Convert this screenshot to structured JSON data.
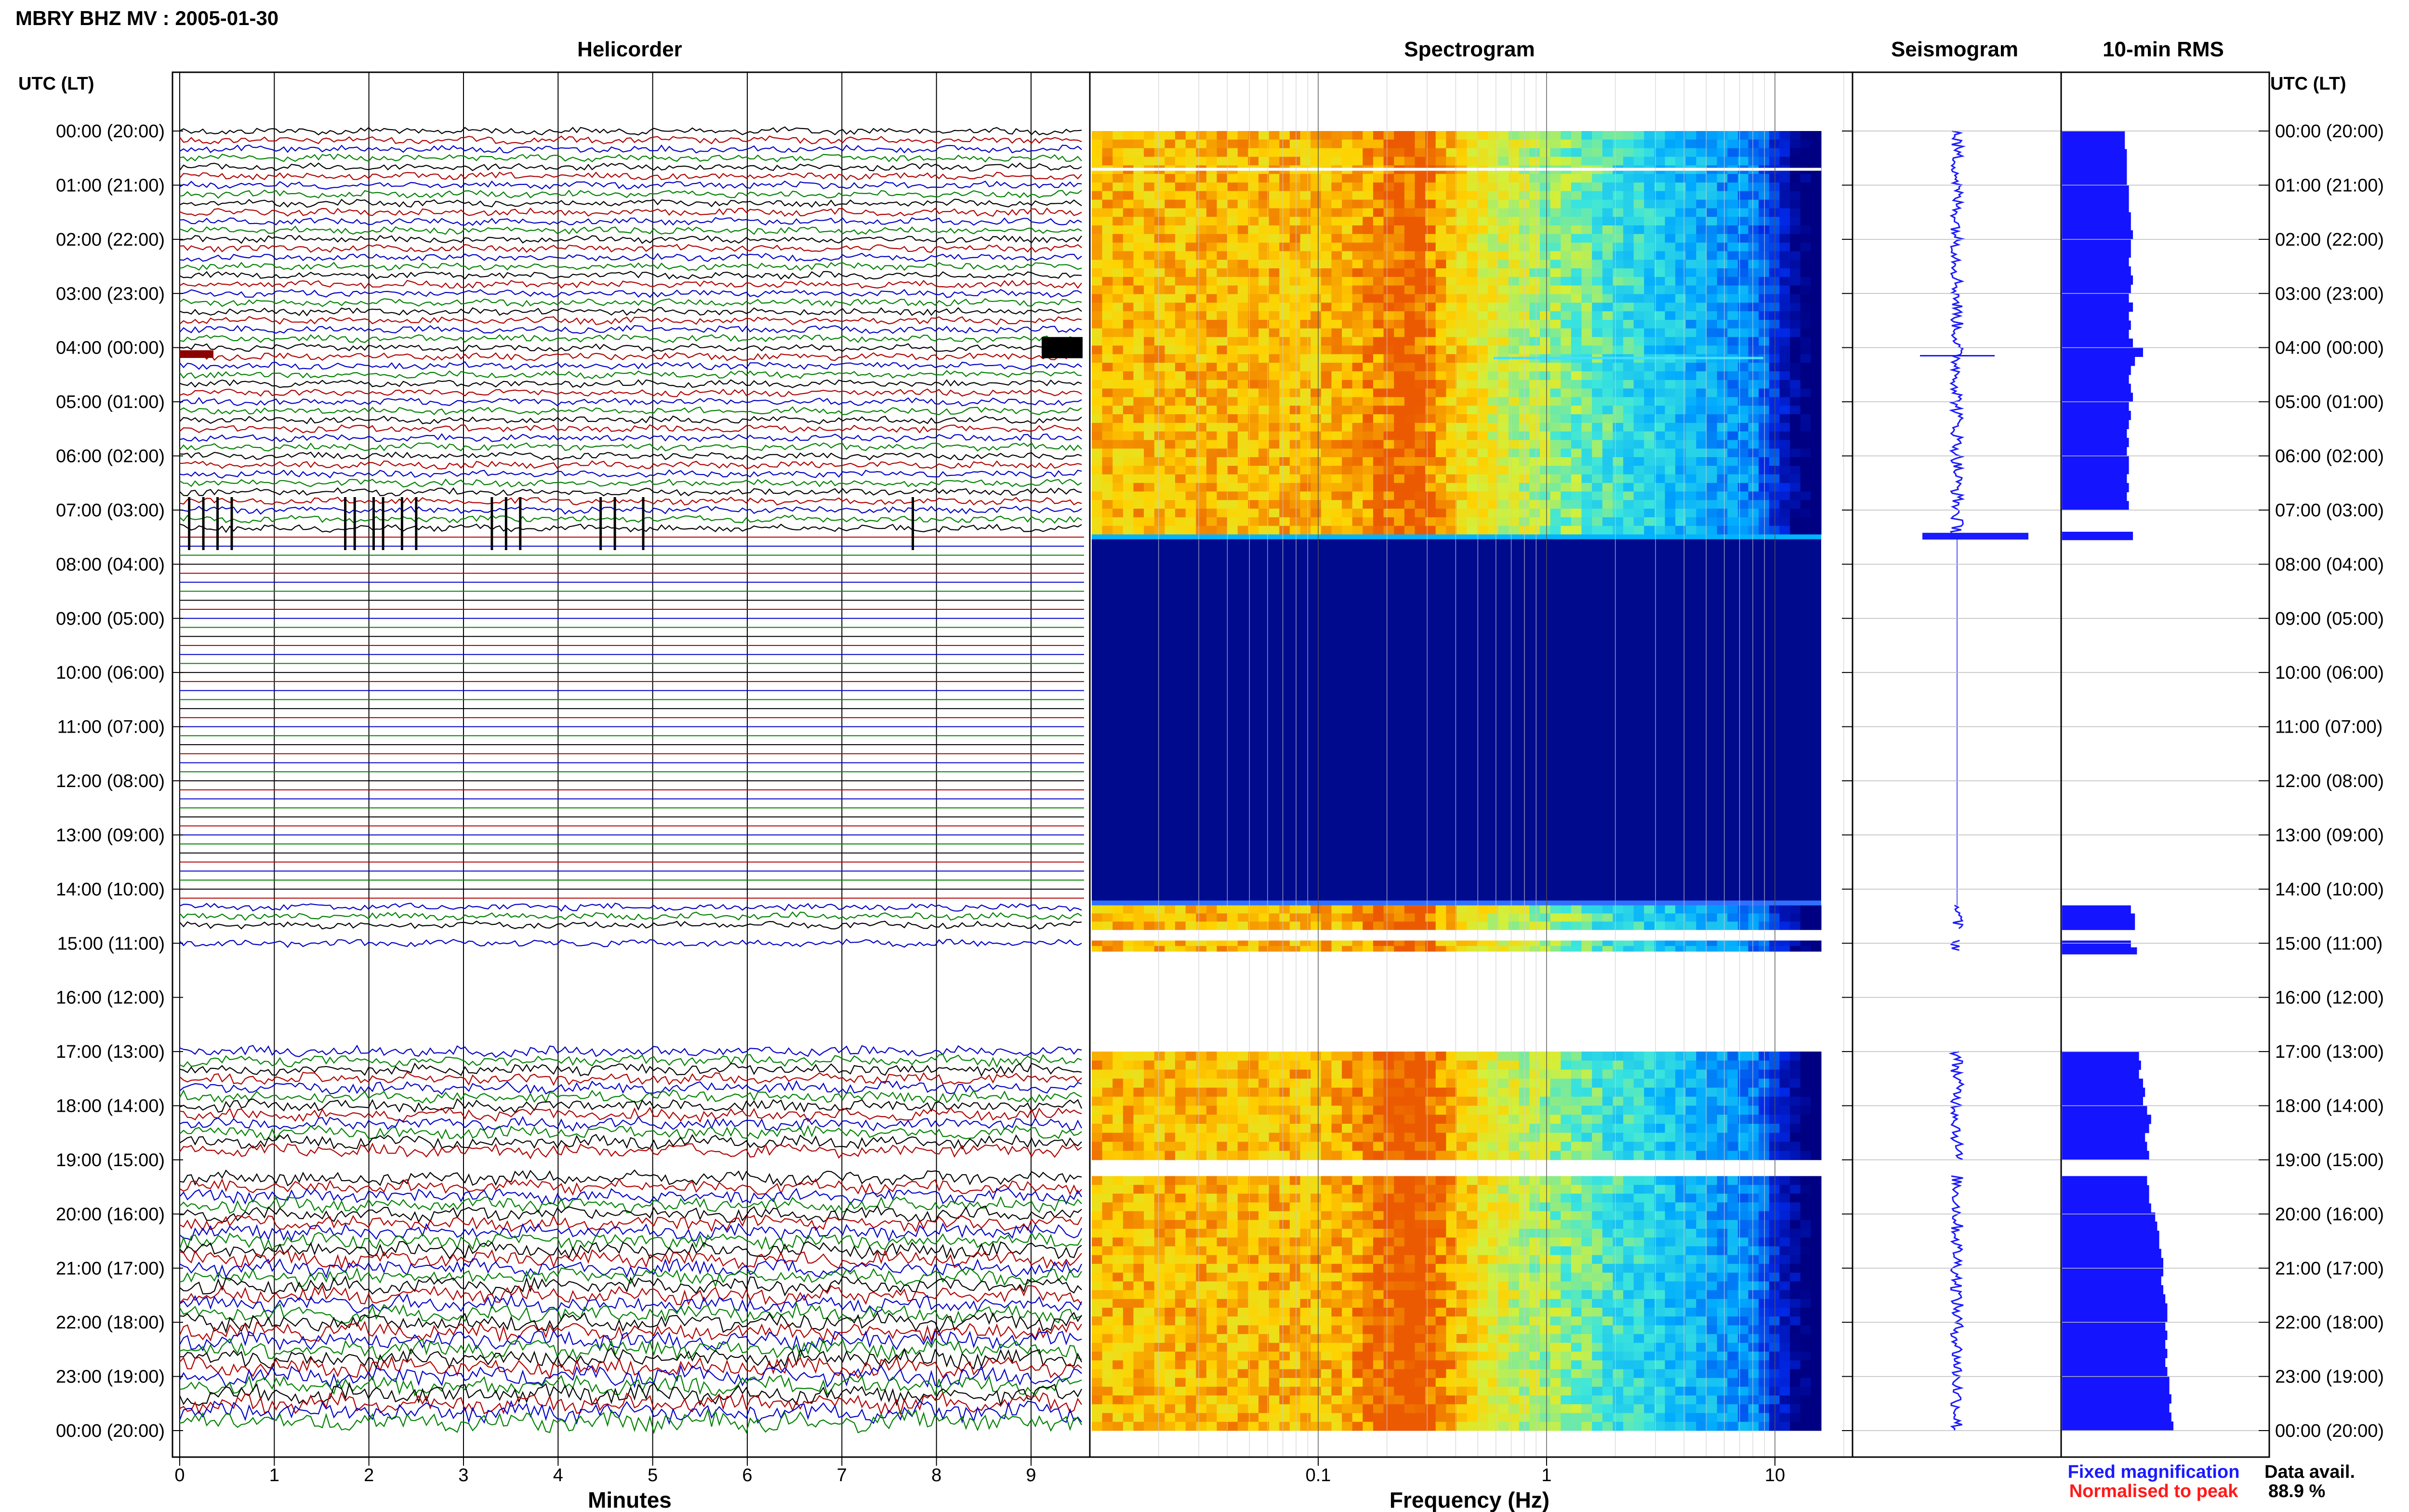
{
  "header": {
    "title": "MBRY BHZ MV : 2005-01-30"
  },
  "panels": {
    "helicorder": {
      "title": "Helicorder",
      "xlabel": "Minutes"
    },
    "spectrogram": {
      "title": "Spectrogram",
      "xlabel": "Frequency (Hz)"
    },
    "seismogram": {
      "title": "Seismogram"
    },
    "rms": {
      "title": "10-min RMS"
    }
  },
  "axis": {
    "left_label": "UTC (LT)",
    "right_label": "UTC (LT)"
  },
  "legend": {
    "fixed": "Fixed magnification",
    "normalised": "Normalised to peak",
    "fixed_color": "#1a1aff",
    "normalised_color": "#ff1a1a"
  },
  "availability": {
    "label": "Data avail.",
    "value": "88.9 %"
  },
  "chart_data": {
    "type": "heatmap",
    "hour_labels": [
      "00:00 (20:00)",
      "01:00 (21:00)",
      "02:00 (22:00)",
      "03:00 (23:00)",
      "04:00 (00:00)",
      "05:00 (01:00)",
      "06:00 (02:00)",
      "07:00 (03:00)",
      "08:00 (04:00)",
      "09:00 (05:00)",
      "10:00 (06:00)",
      "11:00 (07:00)",
      "12:00 (08:00)",
      "13:00 (09:00)",
      "14:00 (10:00)",
      "15:00 (11:00)",
      "16:00 (12:00)",
      "17:00 (13:00)",
      "18:00 (14:00)",
      "19:00 (15:00)",
      "20:00 (16:00)",
      "21:00 (17:00)",
      "22:00 (18:00)",
      "23:00 (19:00)",
      "00:00 (20:00)"
    ],
    "minute_ticks": [
      "0",
      "1",
      "2",
      "3",
      "4",
      "5",
      "6",
      "7",
      "8",
      "9"
    ],
    "minute_range": [
      0,
      10
    ],
    "frequency_ticks": [
      {
        "value": 0.1,
        "label": "0.1"
      },
      {
        "value": 1,
        "label": "1"
      },
      {
        "value": 10,
        "label": "10"
      }
    ],
    "frequency_range": [
      0.02,
      40
    ],
    "frequency_scale": "log",
    "trace_colors": [
      "#000000",
      "#b00000",
      "#0000c8",
      "#008000"
    ],
    "data_segments_hours": [
      [
        0,
        7.45
      ],
      [
        14.3,
        14.75
      ],
      [
        14.95,
        15.15
      ],
      [
        17.0,
        19.0
      ],
      [
        19.3,
        24.0
      ]
    ],
    "flatline_hours": [
      7.45,
      14.3
    ],
    "events": [
      {
        "hour": 4.0,
        "minute": 0.0,
        "note": "wavetrain"
      },
      {
        "hour": 4.0,
        "minute": 9.6,
        "note": "burst"
      },
      {
        "hour": 7.25,
        "minute": 0.1
      },
      {
        "hour": 7.25,
        "minute": 0.25
      },
      {
        "hour": 7.25,
        "minute": 0.4
      },
      {
        "hour": 7.25,
        "minute": 0.55
      },
      {
        "hour": 7.25,
        "minute": 1.75
      },
      {
        "hour": 7.25,
        "minute": 1.85
      },
      {
        "hour": 7.25,
        "minute": 2.05
      },
      {
        "hour": 7.25,
        "minute": 2.15
      },
      {
        "hour": 7.25,
        "minute": 2.35
      },
      {
        "hour": 7.25,
        "minute": 2.5
      },
      {
        "hour": 7.25,
        "minute": 3.3
      },
      {
        "hour": 7.25,
        "minute": 3.45
      },
      {
        "hour": 7.25,
        "minute": 3.6
      },
      {
        "hour": 7.25,
        "minute": 4.45
      },
      {
        "hour": 7.25,
        "minute": 4.6
      },
      {
        "hour": 7.25,
        "minute": 4.9
      },
      {
        "hour": 7.25,
        "minute": 7.75
      }
    ],
    "rms_segments": [
      {
        "from": 0.0,
        "to": 7.0,
        "values": [
          0.31,
          0.31,
          0.32,
          0.32,
          0.32,
          0.32,
          0.33,
          0.33,
          0.33,
          0.34,
          0.34,
          0.35,
          0.34,
          0.34,
          0.33,
          0.34,
          0.35,
          0.34,
          0.33,
          0.35,
          0.33,
          0.34,
          0.33,
          0.35,
          0.4,
          0.36,
          0.34,
          0.33,
          0.34,
          0.35,
          0.33,
          0.34,
          0.33,
          0.32,
          0.33,
          0.32,
          0.33,
          0.33,
          0.32,
          0.33,
          0.32,
          0.33
        ]
      },
      {
        "from": 7.4,
        "to": 7.55,
        "values": [
          0.35
        ]
      },
      {
        "from": 14.3,
        "to": 14.75,
        "values": [
          0.34,
          0.36,
          0.36
        ]
      },
      {
        "from": 14.95,
        "to": 15.2,
        "values": [
          0.34,
          0.37
        ]
      },
      {
        "from": 17.0,
        "to": 19.0,
        "values": [
          0.38,
          0.39,
          0.38,
          0.4,
          0.41,
          0.4,
          0.42,
          0.44,
          0.43,
          0.41,
          0.42,
          0.43
        ]
      },
      {
        "from": 19.3,
        "to": 24.0,
        "values": [
          0.42,
          0.43,
          0.43,
          0.44,
          0.46,
          0.47,
          0.48,
          0.48,
          0.49,
          0.5,
          0.5,
          0.49,
          0.5,
          0.51,
          0.52,
          0.52,
          0.51,
          0.52,
          0.51,
          0.52,
          0.51,
          0.52,
          0.53,
          0.53,
          0.54,
          0.53,
          0.54,
          0.55
        ]
      }
    ]
  }
}
